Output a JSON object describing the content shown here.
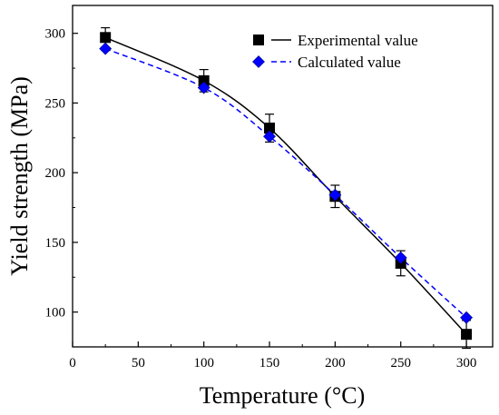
{
  "chart_data": {
    "type": "scatter",
    "xlabel": "Temperature (°C)",
    "ylabel": "Yield strength (MPa)",
    "xlim": [
      0,
      320
    ],
    "ylim": [
      75,
      320
    ],
    "x_ticks": [
      0,
      50,
      100,
      150,
      200,
      250,
      300
    ],
    "y_ticks": [
      100,
      150,
      200,
      250,
      300
    ],
    "grid": false,
    "legend_position": "top-right",
    "series": [
      {
        "name": "Experimental value",
        "marker": "square",
        "line_style": "solid",
        "color": "#000000",
        "x": [
          25,
          100,
          150,
          200,
          250,
          300
        ],
        "y": [
          297,
          266,
          232,
          183,
          135,
          84
        ],
        "error": [
          7,
          8,
          10,
          8,
          9,
          10
        ]
      },
      {
        "name": "Calculated value",
        "marker": "diamond",
        "line_style": "dashed",
        "color": "#0000ff",
        "x": [
          25,
          100,
          150,
          200,
          250,
          300
        ],
        "y": [
          289,
          261,
          226,
          184,
          139,
          96
        ]
      }
    ]
  }
}
